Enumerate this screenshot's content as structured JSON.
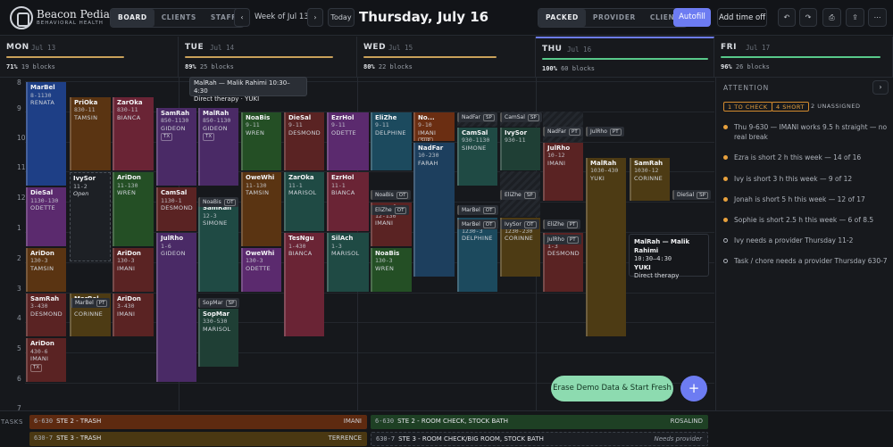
{
  "app": {
    "brand": "Beacon Pediatric",
    "subtitle": "BEHAVIORAL HEALTH"
  },
  "tabs": [
    "BOARD",
    "CLIENTS",
    "STAFF"
  ],
  "week_label": "Week of Jul 13",
  "today_label": "Today",
  "date_title": "Thursday, July 16",
  "view_modes": [
    "PACKED",
    "PROVIDER",
    "CLIENT"
  ],
  "actions": {
    "autofill": "Autofill",
    "time_off": "Add time off",
    "undo": "↶",
    "redo": "↷",
    "print": "⎙",
    "share": "⇪",
    "more": "⋯"
  },
  "colors": {
    "accent": "#6d7cf2",
    "ok": "#58c98a",
    "warn": "#e8a13d"
  },
  "days": [
    {
      "name": "MON",
      "date": "Jul 13",
      "pct": "71%",
      "blocks": "19 blocks",
      "fill": 0.71,
      "color": "#c9a15a"
    },
    {
      "name": "TUE",
      "date": "Jul 14",
      "pct": "89%",
      "blocks": "25 blocks",
      "fill": 0.89,
      "color": "#c9a15a"
    },
    {
      "name": "WED",
      "date": "Jul 15",
      "pct": "80%",
      "blocks": "22 blocks",
      "fill": 0.8,
      "color": "#c9a15a"
    },
    {
      "name": "THU",
      "date": "Jul 16",
      "pct": "100%",
      "blocks": "60 blocks",
      "fill": 1.0,
      "color": "#58c98a"
    },
    {
      "name": "FRI",
      "date": "Jul 17",
      "pct": "96%",
      "blocks": "26 blocks",
      "fill": 0.96,
      "color": "#58c98a"
    }
  ],
  "hours": [
    "8",
    "9",
    "10",
    "11",
    "12",
    "1",
    "2",
    "3",
    "4",
    "5",
    "6",
    "7"
  ],
  "blocks": [
    {
      "n": "MarBel",
      "t": "8-1130",
      "p": "RENATA",
      "c": "#1e3f86"
    },
    {
      "n": "DieSal",
      "t": "1130-130",
      "p": "ODETTE",
      "c": "#5b2a6e"
    },
    {
      "n": "AriDon",
      "t": "130-3",
      "p": "TAMSIN",
      "c": "#5a3412"
    },
    {
      "n": "SamRah",
      "t": "3-430",
      "p": "DESMOND",
      "c": "#5a2323"
    },
    {
      "n": "AriDon",
      "t": "430-6",
      "p": "IMANI",
      "c": "#5a2323",
      "tag": "TX"
    },
    {
      "n": "PriOka",
      "t": "830-11",
      "p": "TAMSIN",
      "c": "#5a3412"
    },
    {
      "n": "IvySor",
      "t": "11-2",
      "o": "Open",
      "c": "#1d2025"
    },
    {
      "n": "MarBel",
      "t": "3-430",
      "p": "CORINNE",
      "c": "#4d3b14"
    },
    {
      "n": "ZarOka",
      "t": "830-11",
      "p": "BIANCA",
      "c": "#6a2435"
    },
    {
      "n": "AriDon",
      "t": "11-130",
      "p": "WREN",
      "c": "#244f25"
    },
    {
      "n": "AriDon",
      "t": "130-3",
      "p": "IMANI",
      "c": "#5a2323"
    },
    {
      "n": "AriDon",
      "t": "3-430",
      "p": "IMANI",
      "c": "#5a2323"
    },
    {
      "n": "SamRah",
      "t": "850-1130",
      "p": "GIDEON",
      "c": "#4a2a66",
      "tag": "TX"
    },
    {
      "n": "CamSal",
      "t": "1130-1",
      "p": "DESMOND",
      "c": "#5a2323"
    },
    {
      "n": "JulRho",
      "t": "1-6",
      "p": "GIDEON",
      "c": "#4a2a66"
    },
    {
      "n": "MalRah",
      "t": "850-1130",
      "p": "GIDEON",
      "c": "#4a2a66",
      "tag": "TX"
    },
    {
      "n": "SamRah",
      "t": "12-3",
      "p": "SIMONE",
      "c": "#1f4a44"
    },
    {
      "n": "SopMar",
      "t": "330-530",
      "p": "MARISOL",
      "c": "#1f3f35"
    },
    {
      "n": "NoaBis",
      "t": "9-11",
      "p": "WREN",
      "c": "#244f25"
    },
    {
      "n": "OweWhi",
      "t": "11-130",
      "p": "TAMSIN",
      "c": "#5a3412"
    },
    {
      "n": "OweWhi",
      "t": "130-3",
      "p": "ODETTE",
      "c": "#5b2a6e"
    },
    {
      "n": "DieSal",
      "t": "9-11",
      "p": "DESMOND",
      "c": "#5a2323"
    },
    {
      "n": "ZarOka",
      "t": "11-1",
      "p": "MARISOL",
      "c": "#1f4a44"
    },
    {
      "n": "TesNgu",
      "t": "1-430",
      "p": "BIANCA",
      "c": "#6a2435"
    },
    {
      "n": "EzrHol",
      "t": "9-11",
      "p": "ODETTE",
      "c": "#5b2a6e"
    },
    {
      "n": "EzrHol",
      "t": "11-1",
      "p": "BIANCA",
      "c": "#6a2435"
    },
    {
      "n": "SilAch",
      "t": "1-3",
      "p": "MARISOL",
      "c": "#1f4a44"
    },
    {
      "n": "EliZhe",
      "t": "9-11",
      "p": "DELPHINE",
      "c": "#1c4a5e"
    },
    {
      "n": "NoaBis",
      "t": "12-130",
      "p": "IMANI",
      "c": "#5a2323"
    },
    {
      "n": "NoaBis",
      "t": "130-3",
      "p": "WREN",
      "c": "#244f25"
    },
    {
      "n": "No...",
      "t": "9-10",
      "p": "IMANI",
      "c": "#6b2e12",
      "tag": "SUP"
    },
    {
      "n": "NadFar",
      "t": "10-230",
      "p": "FARAH",
      "c": "#1d3f5e"
    },
    {
      "n": "CamSal",
      "t": "930-1130",
      "p": "SIMONE",
      "c": "#1f4a44"
    },
    {
      "n": "EliZhe",
      "t": "1230-3",
      "p": "DELPHINE",
      "c": "#1c4a5e"
    },
    {
      "n": "IvySor",
      "t": "930-11",
      "p": "",
      "c": "#1f3f35"
    },
    {
      "n": "MarBel",
      "t": "1230-230",
      "p": "CORINNE",
      "c": "#4d3b14"
    },
    {
      "n": "JulRho",
      "t": "10-12",
      "p": "IMANI",
      "c": "#5a2323"
    },
    {
      "n": "EzrHol",
      "t": "1-3",
      "p": "DESMOND",
      "c": "#5a2323"
    },
    {
      "n": "MalRah",
      "t": "1030-430",
      "p": "YUKI",
      "c": "#4d3b14"
    },
    {
      "n": "SamRah",
      "t": "1030-12",
      "p": "CORINNE",
      "c": "#4d3b14"
    }
  ],
  "chips": [
    {
      "n": "MarBel",
      "tag": "PT"
    },
    {
      "n": "NoaBis",
      "tag": "OT"
    },
    {
      "n": "SopMar",
      "tag": "SP"
    },
    {
      "n": "NoaBis",
      "tag": "OT"
    },
    {
      "n": "EliZhe",
      "tag": "OT"
    },
    {
      "n": "NadFar",
      "tag": "SP"
    },
    {
      "n": "MarBel",
      "tag": "OT"
    },
    {
      "n": "MarBel",
      "tag": "OT"
    },
    {
      "n": "CamSal",
      "tag": "SP"
    },
    {
      "n": "EliZhe",
      "tag": "SP"
    },
    {
      "n": "IvySor",
      "tag": "OT"
    },
    {
      "n": "NadFar",
      "tag": "PT"
    },
    {
      "n": "EliZhe",
      "tag": "PT"
    },
    {
      "n": "JulRho",
      "tag": "PT"
    },
    {
      "n": "JulRho",
      "tag": "PT"
    },
    {
      "n": "DieSal",
      "tag": "SP"
    }
  ],
  "tooltip": {
    "line1": "MalRah — Malik Rahimi  10:30–4:30",
    "line2": "Direct therapy · YUKI"
  },
  "card": {
    "title": "MalRah — Malik Rahimi",
    "time": "10:30–4:30",
    "client": "YUKI",
    "service": "Direct therapy"
  },
  "attention": {
    "label": "ATTENTION",
    "pills": [
      "1 TO CHECK",
      "4 SHORT",
      "2 UNASSIGNED"
    ],
    "items": [
      "Thu 9-630 — IMANI works 9.5 h straight — no real break",
      "Ezra is short 2 h this week — 14 of 16",
      "Ivy is short 3 h this week — 9 of 12",
      "Jonah is short 5 h this week — 12 of 17",
      "Sophie is short 2.5 h this week — 6 of 8.5",
      "Ivy needs a provider Thursday 11-2",
      "Task / chore needs a provider Thursday 630-7"
    ]
  },
  "erase_label": "Erase Demo Data & Start Fresh",
  "plus_label": "+",
  "tasks_label": "TASKS",
  "tasks": [
    {
      "time": "6-630",
      "name": "STE 2 - TRASH",
      "who": "IMANI"
    },
    {
      "time": "6-630",
      "name": "STE 2 - ROOM CHECK, STOCK BATH",
      "who": "ROSALIND"
    },
    {
      "time": "630-7",
      "name": "STE 3 - TRASH",
      "who": "TERRENCE"
    },
    {
      "time": "630-7",
      "name": "STE 3 - ROOM CHECK/BIG ROOM, STOCK BATH",
      "who": "Needs provider"
    }
  ]
}
